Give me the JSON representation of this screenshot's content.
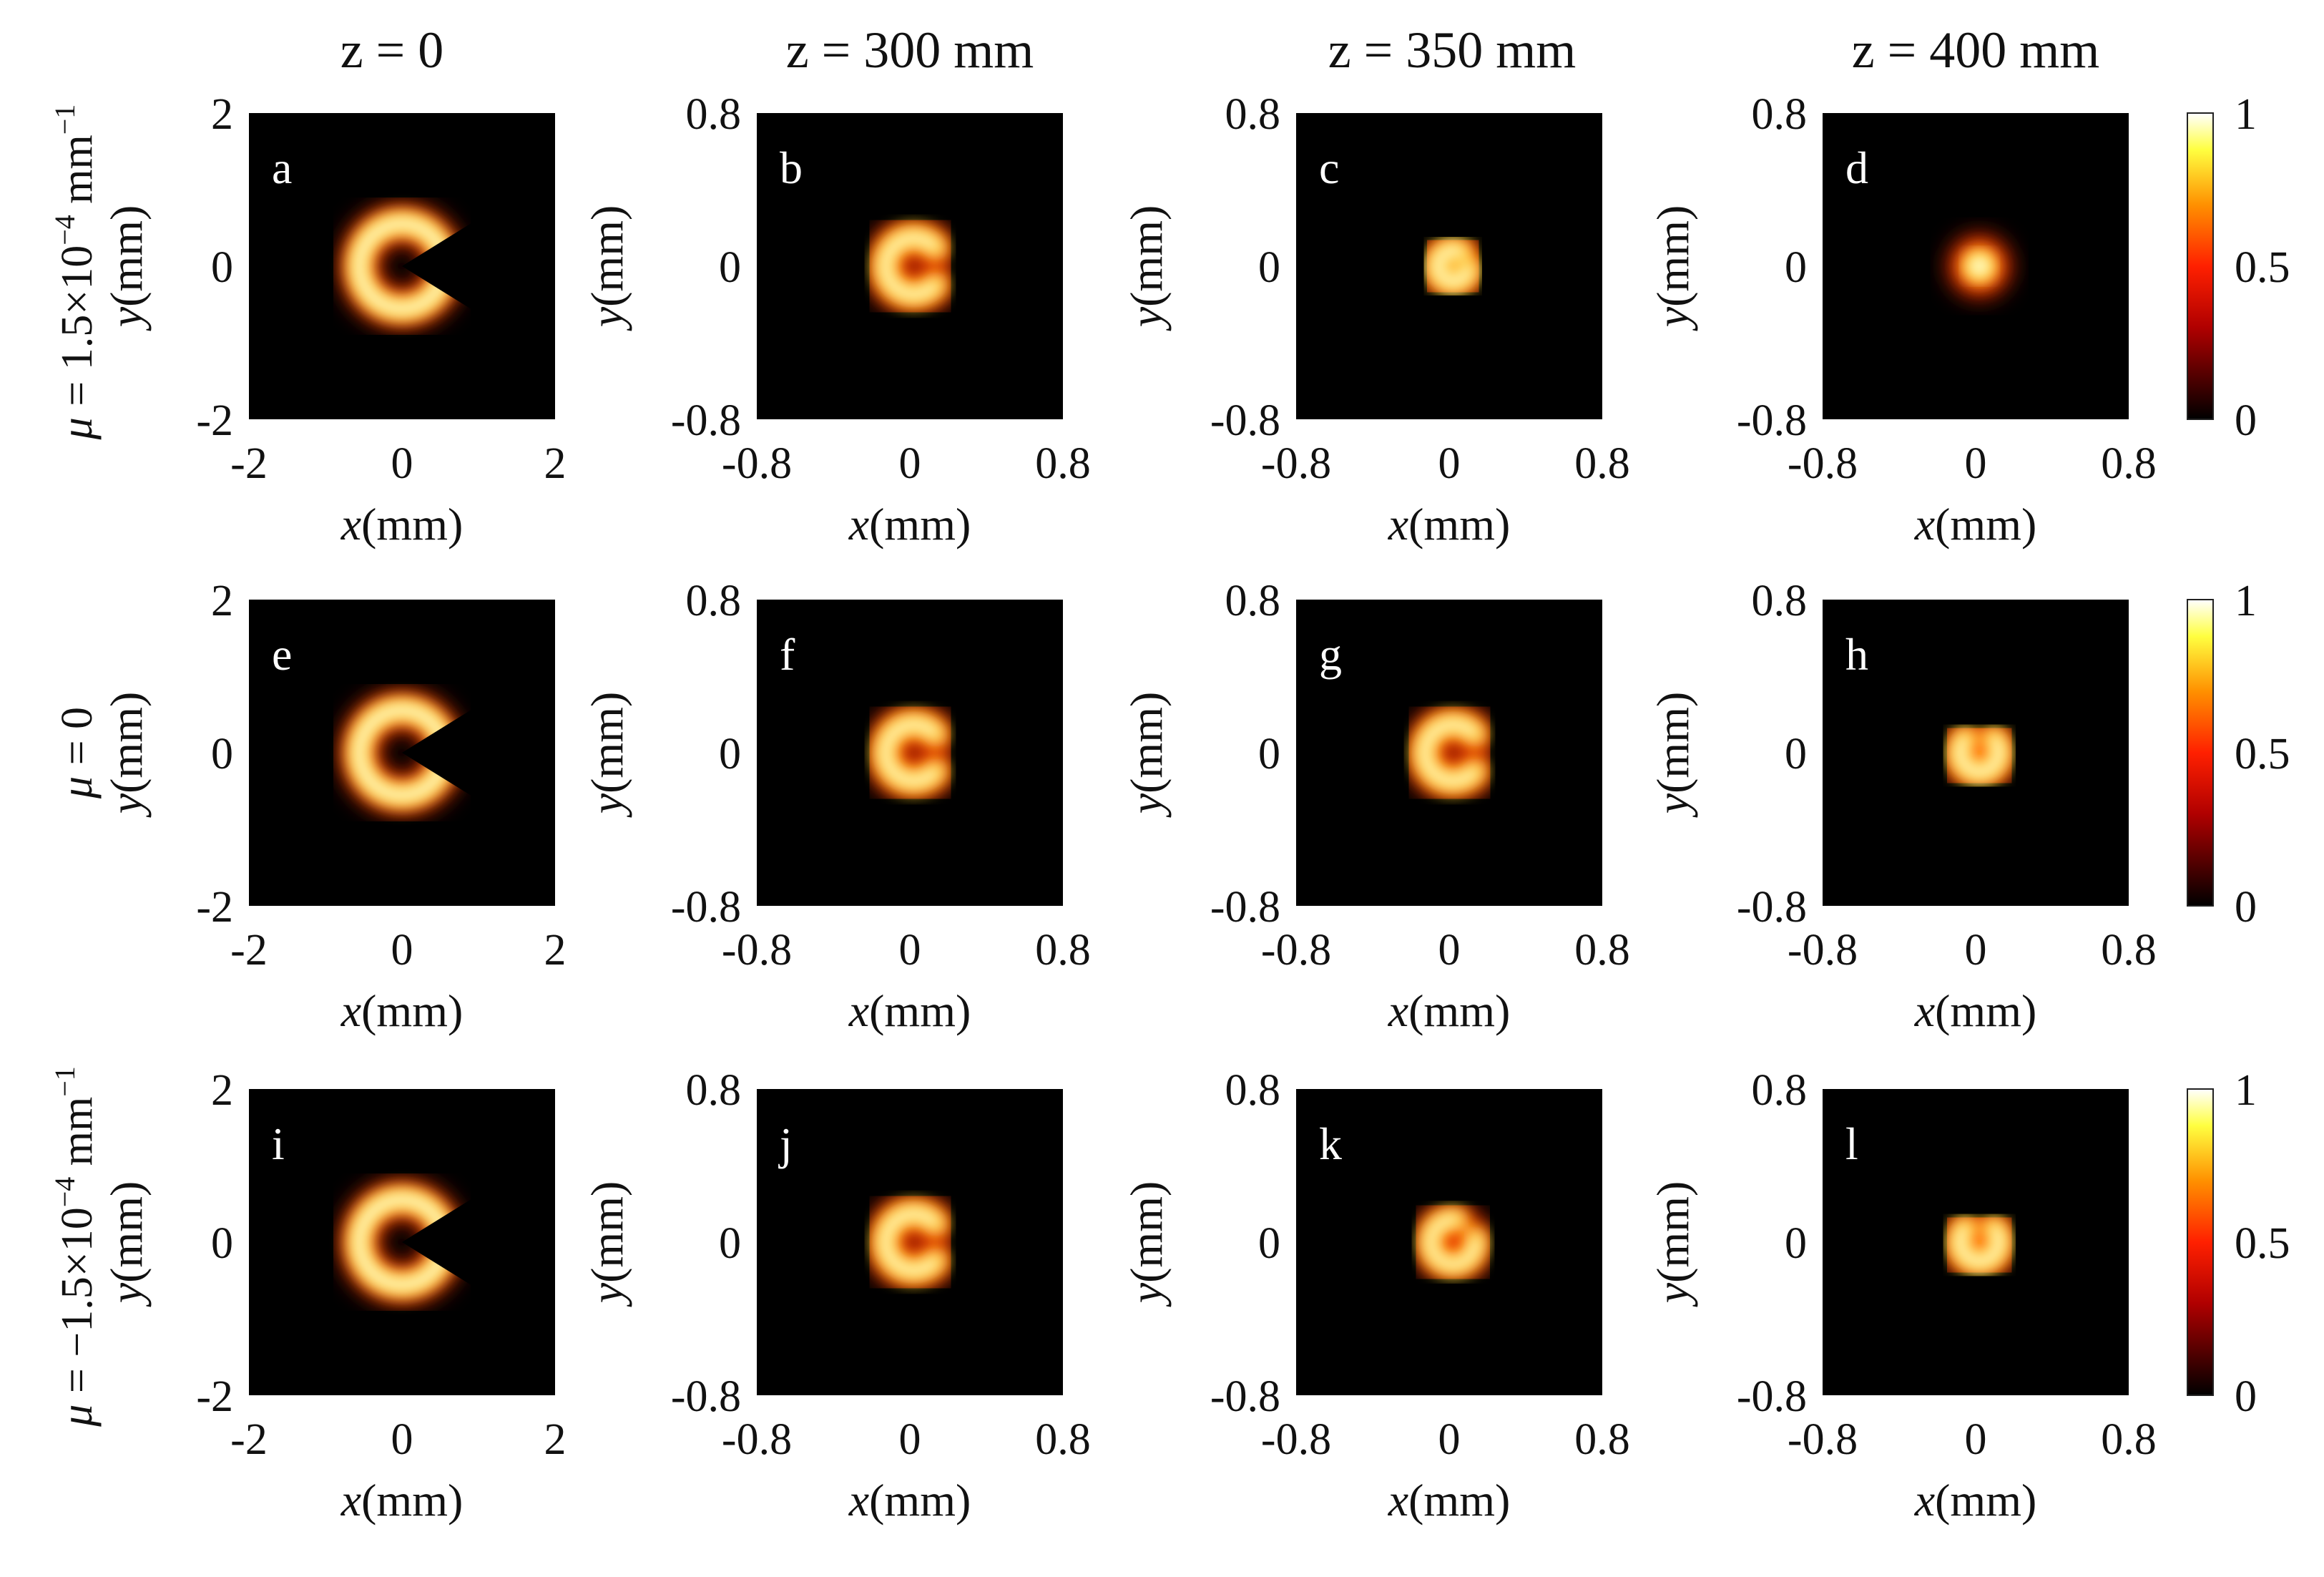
{
  "figure": {
    "column_titles": [
      "z = 0",
      "z = 300 mm",
      "z = 350 mm",
      "z = 400 mm"
    ],
    "row_labels": [
      {
        "symbol": "μ",
        "prefix": " = ",
        "value": "1.5×10",
        "exp": "−4",
        "unit": "mm",
        "unit_exp": "−1"
      },
      {
        "symbol": "μ",
        "prefix": " = ",
        "value": "0",
        "exp": "",
        "unit": "",
        "unit_exp": ""
      },
      {
        "symbol": "μ",
        "prefix": " = ",
        "value": "−1.5×10",
        "exp": "−4",
        "unit": "mm",
        "unit_exp": "−1"
      }
    ],
    "axis_labels": {
      "x_var": "x",
      "y_var": "y",
      "unit": "mm"
    },
    "colorbar": {
      "ticks": [
        "1",
        "0.5",
        "0"
      ],
      "min": 0,
      "max": 1,
      "colormap": "hot"
    },
    "colors": {
      "background": "#000000",
      "hot_low": "#000000",
      "hot_mid": "#ff2200",
      "hot_high": "#ffffff"
    }
  },
  "chart_data": {
    "type": "heatmap",
    "colormap": "hot",
    "value_range": [
      0,
      1
    ],
    "panels": [
      {
        "letter": "a",
        "row": 0,
        "col": 0,
        "xlim": [
          -2,
          2
        ],
        "ylim": [
          -2,
          2
        ],
        "xticks": [
          "-2",
          "0",
          "2"
        ],
        "yticks": [
          "2",
          "0",
          "-2"
        ],
        "pattern": "ring-with-wedge",
        "peak": 1.0
      },
      {
        "letter": "b",
        "row": 0,
        "col": 1,
        "xlim": [
          -0.8,
          0.8
        ],
        "ylim": [
          -0.8,
          0.8
        ],
        "xticks": [
          "-0.8",
          "0",
          "0.8"
        ],
        "yticks": [
          "0.8",
          "0",
          "-0.8"
        ],
        "pattern": "crescent-open-right",
        "peak": 1.0
      },
      {
        "letter": "c",
        "row": 0,
        "col": 2,
        "xlim": [
          -0.8,
          0.8
        ],
        "ylim": [
          -0.8,
          0.8
        ],
        "xticks": [
          "-0.8",
          "0",
          "0.8"
        ],
        "yticks": [
          "0.8",
          "0",
          "-0.8"
        ],
        "pattern": "small-crescent",
        "peak": 1.0
      },
      {
        "letter": "d",
        "row": 0,
        "col": 3,
        "xlim": [
          -0.8,
          0.8
        ],
        "ylim": [
          -0.8,
          0.8
        ],
        "xticks": [
          "-0.8",
          "0",
          "0.8"
        ],
        "yticks": [
          "0.8",
          "0",
          "-0.8"
        ],
        "pattern": "focused-spot",
        "peak": 1.0
      },
      {
        "letter": "e",
        "row": 1,
        "col": 0,
        "xlim": [
          -2,
          2
        ],
        "ylim": [
          -2,
          2
        ],
        "xticks": [
          "-2",
          "0",
          "2"
        ],
        "yticks": [
          "2",
          "0",
          "-2"
        ],
        "pattern": "ring-with-wedge",
        "peak": 1.0
      },
      {
        "letter": "f",
        "row": 1,
        "col": 1,
        "xlim": [
          -0.8,
          0.8
        ],
        "ylim": [
          -0.8,
          0.8
        ],
        "xticks": [
          "-0.8",
          "0",
          "0.8"
        ],
        "yticks": [
          "0.8",
          "0",
          "-0.8"
        ],
        "pattern": "crescent-open-right",
        "peak": 1.0
      },
      {
        "letter": "g",
        "row": 1,
        "col": 2,
        "xlim": [
          -0.8,
          0.8
        ],
        "ylim": [
          -0.8,
          0.8
        ],
        "xticks": [
          "-0.8",
          "0",
          "0.8"
        ],
        "yticks": [
          "0.8",
          "0",
          "-0.8"
        ],
        "pattern": "crescent-open-right",
        "peak": 1.0
      },
      {
        "letter": "h",
        "row": 1,
        "col": 3,
        "xlim": [
          -0.8,
          0.8
        ],
        "ylim": [
          -0.8,
          0.8
        ],
        "xticks": [
          "-0.8",
          "0",
          "0.8"
        ],
        "yticks": [
          "0.8",
          "0",
          "-0.8"
        ],
        "pattern": "cup-open-top",
        "peak": 1.0
      },
      {
        "letter": "i",
        "row": 2,
        "col": 0,
        "xlim": [
          -2,
          2
        ],
        "ylim": [
          -2,
          2
        ],
        "xticks": [
          "-2",
          "0",
          "2"
        ],
        "yticks": [
          "2",
          "0",
          "-2"
        ],
        "pattern": "ring-with-wedge",
        "peak": 1.0
      },
      {
        "letter": "j",
        "row": 2,
        "col": 1,
        "xlim": [
          -0.8,
          0.8
        ],
        "ylim": [
          -0.8,
          0.8
        ],
        "xticks": [
          "-0.8",
          "0",
          "0.8"
        ],
        "yticks": [
          "0.8",
          "0",
          "-0.8"
        ],
        "pattern": "crescent-open-right",
        "peak": 1.0
      },
      {
        "letter": "k",
        "row": 2,
        "col": 2,
        "xlim": [
          -0.8,
          0.8
        ],
        "ylim": [
          -0.8,
          0.8
        ],
        "xticks": [
          "-0.8",
          "0",
          "0.8"
        ],
        "yticks": [
          "0.8",
          "0",
          "-0.8"
        ],
        "pattern": "ring-open-top-right",
        "peak": 1.0
      },
      {
        "letter": "l",
        "row": 2,
        "col": 3,
        "xlim": [
          -0.8,
          0.8
        ],
        "ylim": [
          -0.8,
          0.8
        ],
        "xticks": [
          "-0.8",
          "0",
          "0.8"
        ],
        "yticks": [
          "0.8",
          "0",
          "-0.8"
        ],
        "pattern": "cup-open-top",
        "peak": 1.0
      }
    ]
  }
}
